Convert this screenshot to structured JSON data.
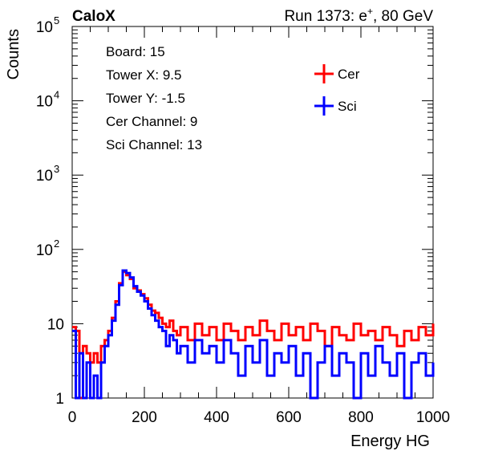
{
  "header": {
    "left_label": "CaloX",
    "right_label_prefix": "Run 1373: e",
    "right_label_sup": "+",
    "right_label_suffix": ", 80 GeV"
  },
  "info_box": {
    "lines": [
      "Board: 15",
      "Tower X: 9.5",
      "Tower Y: -1.5",
      "Cer Channel: 9",
      "Sci Channel: 13"
    ]
  },
  "chart_data": {
    "type": "line",
    "title": "",
    "xlabel": "Energy HG",
    "ylabel": "Counts",
    "xlim": [
      0,
      1000
    ],
    "ylim": [
      1,
      100000
    ],
    "yscale": "log",
    "x_ticks": [
      0,
      200,
      400,
      600,
      800,
      1000
    ],
    "y_ticks": [
      {
        "value": 1,
        "label": "1"
      },
      {
        "value": 10,
        "label": "10"
      },
      {
        "value": 100,
        "label": "10",
        "sup": "2"
      },
      {
        "value": 1000,
        "label": "10",
        "sup": "3"
      },
      {
        "value": 10000,
        "label": "10",
        "sup": "4"
      },
      {
        "value": 100000,
        "label": "10",
        "sup": "5"
      }
    ],
    "legend_position": "top-right",
    "series": [
      {
        "name": "Cer",
        "color": "#ff0000",
        "points": [
          [
            0,
            9
          ],
          [
            10,
            8
          ],
          [
            20,
            1
          ],
          [
            30,
            5
          ],
          [
            40,
            4
          ],
          [
            50,
            3
          ],
          [
            60,
            4
          ],
          [
            70,
            3
          ],
          [
            80,
            5
          ],
          [
            90,
            6
          ],
          [
            100,
            8
          ],
          [
            110,
            12
          ],
          [
            120,
            20
          ],
          [
            130,
            35
          ],
          [
            140,
            50
          ],
          [
            150,
            45
          ],
          [
            160,
            40
          ],
          [
            170,
            30
          ],
          [
            180,
            28
          ],
          [
            190,
            25
          ],
          [
            200,
            22
          ],
          [
            210,
            18
          ],
          [
            220,
            15
          ],
          [
            230,
            14
          ],
          [
            240,
            12
          ],
          [
            250,
            10
          ],
          [
            260,
            9
          ],
          [
            270,
            11
          ],
          [
            280,
            8
          ],
          [
            290,
            7
          ],
          [
            300,
            9
          ],
          [
            320,
            6
          ],
          [
            340,
            10
          ],
          [
            360,
            7
          ],
          [
            380,
            9
          ],
          [
            400,
            6
          ],
          [
            420,
            10
          ],
          [
            440,
            8
          ],
          [
            460,
            6
          ],
          [
            480,
            9
          ],
          [
            500,
            7
          ],
          [
            520,
            11
          ],
          [
            540,
            8
          ],
          [
            560,
            6
          ],
          [
            580,
            10
          ],
          [
            600,
            7
          ],
          [
            620,
            9
          ],
          [
            640,
            6
          ],
          [
            660,
            10
          ],
          [
            680,
            8
          ],
          [
            700,
            5
          ],
          [
            720,
            9
          ],
          [
            740,
            7
          ],
          [
            760,
            6
          ],
          [
            780,
            10
          ],
          [
            800,
            7
          ],
          [
            820,
            8
          ],
          [
            840,
            6
          ],
          [
            860,
            9
          ],
          [
            880,
            7
          ],
          [
            900,
            5
          ],
          [
            920,
            8
          ],
          [
            940,
            6
          ],
          [
            960,
            9
          ],
          [
            980,
            7
          ],
          [
            1000,
            10
          ]
        ]
      },
      {
        "name": "Sci",
        "color": "#0000ff",
        "points": [
          [
            0,
            8
          ],
          [
            10,
            1
          ],
          [
            20,
            4
          ],
          [
            30,
            1
          ],
          [
            40,
            3
          ],
          [
            50,
            1
          ],
          [
            60,
            2
          ],
          [
            70,
            1
          ],
          [
            80,
            3
          ],
          [
            90,
            5
          ],
          [
            100,
            7
          ],
          [
            110,
            11
          ],
          [
            120,
            18
          ],
          [
            130,
            33
          ],
          [
            140,
            52
          ],
          [
            150,
            48
          ],
          [
            160,
            42
          ],
          [
            170,
            32
          ],
          [
            180,
            27
          ],
          [
            190,
            24
          ],
          [
            200,
            20
          ],
          [
            210,
            16
          ],
          [
            220,
            13
          ],
          [
            230,
            11
          ],
          [
            240,
            9
          ],
          [
            250,
            8
          ],
          [
            260,
            5
          ],
          [
            270,
            7
          ],
          [
            280,
            6
          ],
          [
            290,
            4
          ],
          [
            300,
            5
          ],
          [
            320,
            3
          ],
          [
            340,
            6
          ],
          [
            360,
            4
          ],
          [
            380,
            5
          ],
          [
            400,
            3
          ],
          [
            420,
            6
          ],
          [
            440,
            4
          ],
          [
            460,
            2
          ],
          [
            480,
            5
          ],
          [
            500,
            3
          ],
          [
            520,
            6
          ],
          [
            540,
            2
          ],
          [
            560,
            4
          ],
          [
            580,
            3
          ],
          [
            600,
            5
          ],
          [
            620,
            2
          ],
          [
            640,
            4
          ],
          [
            660,
            1
          ],
          [
            680,
            3
          ],
          [
            700,
            5
          ],
          [
            720,
            2
          ],
          [
            740,
            4
          ],
          [
            760,
            3
          ],
          [
            780,
            1
          ],
          [
            800,
            4
          ],
          [
            820,
            2
          ],
          [
            840,
            5
          ],
          [
            860,
            3
          ],
          [
            880,
            2
          ],
          [
            900,
            4
          ],
          [
            920,
            1
          ],
          [
            940,
            3
          ],
          [
            960,
            4
          ],
          [
            980,
            2
          ],
          [
            1000,
            3
          ]
        ]
      }
    ]
  }
}
